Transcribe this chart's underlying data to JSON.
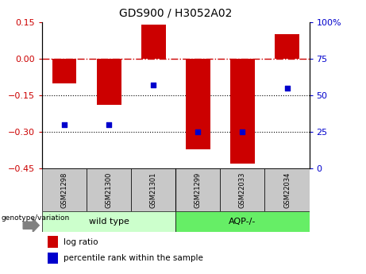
{
  "title": "GDS900 / H3052A02",
  "categories": [
    "GSM21298",
    "GSM21300",
    "GSM21301",
    "GSM21299",
    "GSM22033",
    "GSM22034"
  ],
  "log_ratios": [
    -0.1,
    -0.19,
    0.14,
    -0.37,
    -0.43,
    0.1
  ],
  "percentile_ranks": [
    30,
    30,
    57,
    25,
    25,
    55
  ],
  "ylim_left": [
    -0.45,
    0.15
  ],
  "ylim_right": [
    0,
    100
  ],
  "left_yticks": [
    -0.45,
    -0.3,
    -0.15,
    0,
    0.15
  ],
  "right_yticks": [
    0,
    25,
    50,
    75,
    100
  ],
  "bar_color": "#cc0000",
  "scatter_color": "#0000cc",
  "zero_line_color": "#cc0000",
  "dotted_line_color": "#000000",
  "wild_type_color": "#ccffcc",
  "aqp_color": "#66ee66",
  "sample_label_bg": "#c8c8c8",
  "legend_log_ratio": "log ratio",
  "legend_percentile": "percentile rank within the sample",
  "genotype_label": "genotype/variation",
  "wild_type_label": "wild type",
  "aqp_label": "AQP-/-"
}
